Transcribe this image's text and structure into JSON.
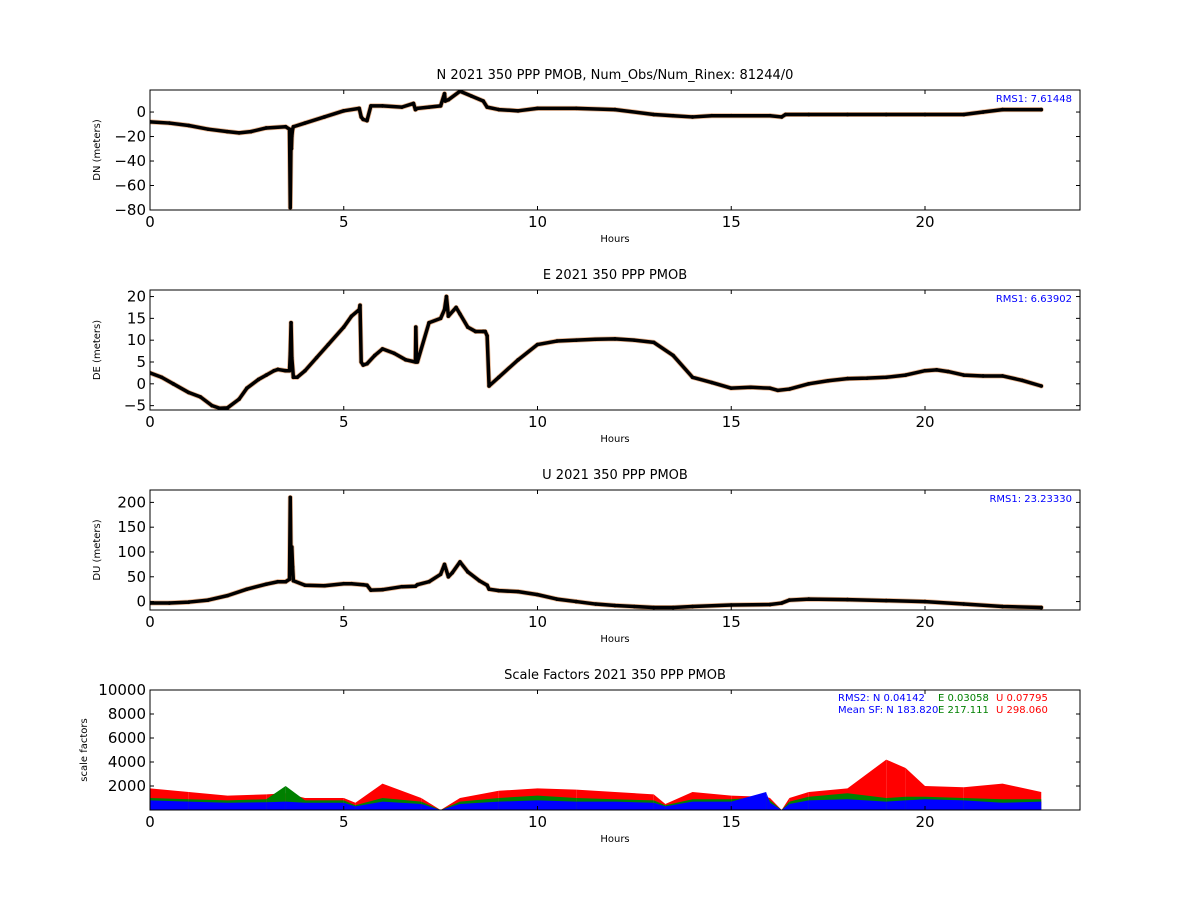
{
  "chart_data": [
    {
      "type": "scatter",
      "title": "N 2021 350 PPP  PMOB, Num_Obs/Num_Rinex: 81244/0",
      "xlabel": "Hours",
      "ylabel": "DN (meters)",
      "xlim": [
        0,
        24
      ],
      "ylim": [
        -80,
        18
      ],
      "xticks": [
        "0",
        "5",
        "10",
        "15",
        "20"
      ],
      "yticks": [
        "0",
        "−20",
        "−40",
        "−60",
        "−80"
      ],
      "annotation": "RMS1:  7.61448",
      "annotation_color": "#0000ff",
      "grid": false,
      "series": [
        {
          "color": "#000000",
          "x": [
            0,
            0.5,
            1.0,
            1.5,
            2.0,
            2.3,
            2.6,
            3.0,
            3.5,
            3.6,
            3.62,
            3.64,
            3.65,
            3.66,
            3.68,
            3.7,
            4.0,
            4.5,
            5.0,
            5.4,
            5.45,
            5.5,
            5.6,
            5.7,
            6.0,
            6.5,
            6.8,
            6.85,
            6.9,
            7.2,
            7.5,
            7.6,
            7.62,
            7.7,
            8.0,
            8.3,
            8.6,
            8.7,
            9.0,
            9.5,
            10.0,
            11.0,
            12.0,
            13.0,
            13.5,
            14.0,
            14.5,
            15.0,
            16.0,
            16.3,
            16.4,
            17.0,
            18.0,
            19.0,
            20.0,
            21.0,
            21.5,
            22.0,
            23.0
          ],
          "y": [
            -8,
            -9,
            -11,
            -14,
            -16,
            -17,
            -16,
            -13,
            -12,
            -14,
            -78,
            -20,
            -30,
            -20,
            -14,
            -12,
            -9,
            -4,
            1,
            3,
            -4,
            -6,
            -7,
            5,
            5,
            4,
            7,
            2,
            3,
            4,
            5,
            15,
            9,
            10,
            17,
            13,
            9,
            4,
            2,
            1,
            3,
            3,
            2,
            -2,
            -3,
            -4,
            -3,
            -3,
            -3,
            -4,
            -2,
            -2,
            -2,
            -2,
            -2,
            -2,
            0,
            2,
            2
          ]
        }
      ]
    },
    {
      "type": "scatter",
      "title": "E 2021 350 PPP  PMOB",
      "xlabel": "Hours",
      "ylabel": "DE (meters)",
      "xlim": [
        0,
        24
      ],
      "ylim": [
        -6,
        21.5
      ],
      "xticks": [
        "0",
        "5",
        "10",
        "15",
        "20"
      ],
      "yticks": [
        "20",
        "15",
        "10",
        "5",
        "0",
        "−5"
      ],
      "annotation": "RMS1:  6.63902",
      "annotation_color": "#0000ff",
      "grid": false,
      "series": [
        {
          "color": "#000000",
          "x": [
            0,
            0.3,
            0.6,
            1.0,
            1.3,
            1.6,
            1.8,
            2.0,
            2.3,
            2.5,
            2.8,
            3.0,
            3.2,
            3.3,
            3.5,
            3.6,
            3.62,
            3.64,
            3.66,
            3.7,
            3.8,
            4.0,
            4.3,
            4.6,
            5.0,
            5.2,
            5.4,
            5.42,
            5.45,
            5.5,
            5.6,
            5.8,
            6.0,
            6.3,
            6.6,
            6.85,
            6.86,
            6.88,
            6.9,
            7.2,
            7.5,
            7.6,
            7.65,
            7.7,
            7.9,
            8.0,
            8.2,
            8.4,
            8.6,
            8.65,
            8.7,
            8.75,
            9.0,
            9.5,
            10.0,
            10.5,
            11.0,
            11.5,
            12.0,
            12.5,
            13.0,
            13.5,
            14.0,
            14.5,
            15.0,
            15.5,
            16.0,
            16.2,
            16.5,
            17.0,
            17.5,
            18.0,
            18.5,
            19.0,
            19.5,
            20.0,
            20.3,
            20.6,
            21.0,
            21.5,
            22.0,
            22.5,
            23.0
          ],
          "y": [
            2.5,
            1.5,
            0,
            -2,
            -3,
            -5,
            -5.6,
            -5.5,
            -3.5,
            -1,
            1,
            2,
            3,
            3.3,
            3,
            3,
            7,
            14,
            6,
            1.5,
            1.5,
            3,
            6,
            9,
            13,
            15.5,
            17,
            18,
            5,
            4.3,
            4.6,
            6.5,
            8,
            7,
            5.5,
            5,
            13,
            5,
            5,
            14,
            15,
            17,
            20,
            15.5,
            17.5,
            16,
            13,
            12,
            12,
            12,
            11,
            -0.5,
            1.5,
            5.5,
            9,
            9.8,
            10,
            10.2,
            10.3,
            10,
            9.5,
            6.5,
            1.5,
            0.3,
            -1,
            -0.8,
            -1,
            -1.5,
            -1.2,
            0,
            0.7,
            1.2,
            1.3,
            1.5,
            2,
            3,
            3.2,
            2.8,
            2,
            1.8,
            1.8,
            0.8,
            -0.5
          ]
        }
      ]
    },
    {
      "type": "scatter",
      "title": "U 2021 350 PPP  PMOB",
      "xlabel": "Hours",
      "ylabel": "DU (meters)",
      "xlim": [
        0,
        24
      ],
      "ylim": [
        -17,
        225
      ],
      "xticks": [
        "0",
        "5",
        "10",
        "15",
        "20"
      ],
      "yticks": [
        "200",
        "150",
        "100",
        "50",
        "0"
      ],
      "annotation": "RMS1: 23.23330",
      "annotation_color": "#0000ff",
      "grid": false,
      "series": [
        {
          "color": "#000000",
          "x": [
            0,
            0.5,
            1.0,
            1.5,
            2.0,
            2.5,
            3.0,
            3.3,
            3.5,
            3.6,
            3.62,
            3.64,
            3.66,
            3.68,
            3.7,
            4.0,
            4.5,
            5.0,
            5.2,
            5.5,
            5.6,
            5.7,
            6.0,
            6.5,
            6.85,
            6.9,
            7.2,
            7.5,
            7.6,
            7.7,
            7.8,
            8.0,
            8.2,
            8.5,
            8.7,
            8.75,
            9.0,
            9.5,
            10.0,
            10.5,
            11.0,
            11.5,
            12.0,
            12.5,
            13.0,
            13.5,
            14.0,
            15.0,
            16.0,
            16.3,
            16.5,
            17.0,
            18.0,
            19.0,
            20.0,
            21.0,
            22.0,
            23.0
          ],
          "y": [
            -3,
            -3,
            -1,
            3,
            12,
            25,
            35,
            40,
            40,
            45,
            210,
            60,
            110,
            70,
            42,
            33,
            32,
            36,
            36,
            34,
            33,
            23,
            24,
            30,
            31,
            34,
            40,
            55,
            75,
            50,
            58,
            80,
            60,
            42,
            33,
            25,
            22,
            20,
            14,
            5,
            0,
            -5,
            -8,
            -10,
            -12,
            -12,
            -10,
            -7,
            -6,
            -3,
            3,
            5,
            4,
            2,
            0,
            -5,
            -10,
            -12
          ]
        }
      ]
    },
    {
      "type": "bar",
      "title": "Scale Factors 2021 350 PPP  PMOB",
      "xlabel": "Hours",
      "ylabel": "scale factors",
      "xlim": [
        0,
        24
      ],
      "ylim": [
        0,
        10000
      ],
      "xticks": [
        "0",
        "5",
        "10",
        "15",
        "20"
      ],
      "yticks": [
        "10000",
        "8000",
        "6000",
        "4000",
        "2000"
      ],
      "grid": false,
      "annotations": [
        {
          "label": "RMS2: N  0.04142",
          "color": "#0000ff"
        },
        {
          "label": "E  0.03058",
          "color": "#008000"
        },
        {
          "label": "U  0.07795",
          "color": "#ff0000"
        },
        {
          "label": "Mean SF: N 183.820",
          "color": "#0000ff"
        },
        {
          "label": "E 217.111",
          "color": "#008000"
        },
        {
          "label": "U 298.060",
          "color": "#ff0000"
        }
      ],
      "series": [
        {
          "name": "N",
          "color": "#0000ff",
          "x": [
            0,
            1,
            2,
            3,
            3.5,
            4,
            5,
            5.3,
            6,
            7,
            7.5,
            8,
            9,
            10,
            11,
            12,
            13,
            13.3,
            14,
            15,
            15.9,
            16,
            16.3,
            16.5,
            17,
            18,
            19,
            19.5,
            20,
            21,
            22,
            23
          ],
          "y": [
            800,
            700,
            600,
            650,
            700,
            600,
            600,
            300,
            700,
            500,
            0,
            500,
            700,
            800,
            700,
            700,
            600,
            300,
            700,
            700,
            1500,
            600,
            0,
            500,
            800,
            900,
            700,
            800,
            900,
            800,
            600,
            700
          ]
        },
        {
          "name": "E",
          "color": "#008000",
          "x": [
            0,
            1,
            2,
            3,
            3.5,
            4,
            5,
            5.3,
            6,
            7,
            7.5,
            8,
            9,
            10,
            11,
            12,
            13,
            13.3,
            14,
            15,
            15.9,
            16,
            16.3,
            16.5,
            17,
            18,
            19,
            19.5,
            20,
            21,
            22,
            23
          ],
          "y": [
            1000,
            900,
            800,
            900,
            2000,
            800,
            800,
            400,
            1000,
            700,
            0,
            700,
            1000,
            1200,
            1000,
            900,
            800,
            400,
            900,
            900,
            1100,
            800,
            0,
            700,
            1100,
            1400,
            1000,
            1100,
            1100,
            1000,
            900,
            900
          ]
        },
        {
          "name": "U",
          "color": "#ff0000",
          "x": [
            0,
            1,
            2,
            3,
            3.5,
            4,
            5,
            5.3,
            6,
            7,
            7.5,
            8,
            9,
            10,
            11,
            12,
            13,
            13.3,
            14,
            15,
            15.9,
            16,
            16.3,
            16.5,
            17,
            18,
            19,
            19.5,
            20,
            21,
            22,
            23
          ],
          "y": [
            1800,
            1500,
            1200,
            1300,
            1400,
            1000,
            1000,
            600,
            2200,
            1000,
            0,
            1000,
            1600,
            1800,
            1700,
            1500,
            1300,
            500,
            1500,
            1200,
            1100,
            1000,
            0,
            1000,
            1500,
            1800,
            4200,
            3500,
            2000,
            1900,
            2200,
            1500
          ]
        }
      ]
    }
  ]
}
